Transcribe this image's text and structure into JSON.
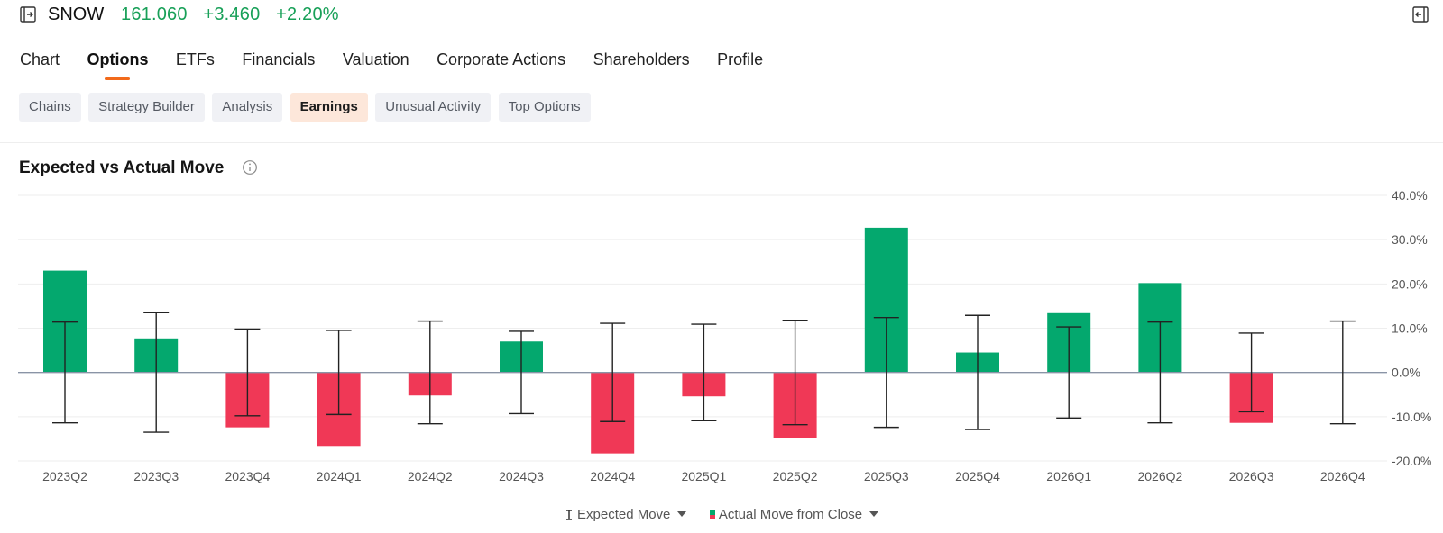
{
  "header": {
    "panel_icon": "panel-expand-icon",
    "symbol": "SNOW",
    "price": "161.060",
    "change": "+3.460",
    "change_pct": "+2.20%",
    "collapse_icon": "panel-collapse-icon"
  },
  "tabs": [
    {
      "label": "Chart",
      "active": false
    },
    {
      "label": "Options",
      "active": true
    },
    {
      "label": "ETFs",
      "active": false
    },
    {
      "label": "Financials",
      "active": false
    },
    {
      "label": "Valuation",
      "active": false
    },
    {
      "label": "Corporate Actions",
      "active": false
    },
    {
      "label": "Shareholders",
      "active": false
    },
    {
      "label": "Profile",
      "active": false
    }
  ],
  "subtabs": [
    {
      "label": "Chains",
      "active": false
    },
    {
      "label": "Strategy Builder",
      "active": false
    },
    {
      "label": "Analysis",
      "active": false
    },
    {
      "label": "Earnings",
      "active": true
    },
    {
      "label": "Unusual Activity",
      "active": false
    },
    {
      "label": "Top Options",
      "active": false
    }
  ],
  "section": {
    "title": "Expected vs Actual Move",
    "info_icon": "info-icon"
  },
  "colors": {
    "positive": "#04a86e",
    "negative": "#f03856",
    "whisker": "#222222",
    "zero_line": "#8a94a6",
    "grid": "#eeeeee",
    "accent": "#f26a1b",
    "price_up": "#18a058"
  },
  "chart_data": {
    "type": "bar",
    "title": "Expected vs Actual Move",
    "categories": [
      "2023Q2",
      "2023Q3",
      "2023Q4",
      "2024Q1",
      "2024Q2",
      "2024Q3",
      "2024Q4",
      "2025Q1",
      "2025Q2",
      "2025Q3",
      "2025Q4",
      "2026Q1",
      "2026Q2",
      "2026Q3",
      "2026Q4"
    ],
    "series": [
      {
        "name": "Actual Move from Close",
        "values": [
          23.0,
          7.7,
          -12.4,
          -16.6,
          -5.2,
          7.0,
          -18.3,
          -5.4,
          -14.8,
          32.7,
          4.5,
          13.4,
          20.2,
          -11.4,
          null
        ]
      },
      {
        "name": "Expected Move",
        "values": [
          11.4,
          13.5,
          9.8,
          9.5,
          11.6,
          9.3,
          11.1,
          10.9,
          11.8,
          12.4,
          12.9,
          10.3,
          11.4,
          8.9,
          11.6
        ]
      }
    ],
    "y_ticks": [
      "40.0%",
      "30.0%",
      "20.0%",
      "10.0%",
      "0.0%",
      "-10.0%",
      "-20.0%"
    ],
    "ylim": [
      -20,
      40
    ],
    "y_axis_side": "right",
    "grid": true,
    "legend_position": "bottom"
  },
  "legend": {
    "expected": "Expected Move",
    "actual": "Actual Move from Close"
  }
}
